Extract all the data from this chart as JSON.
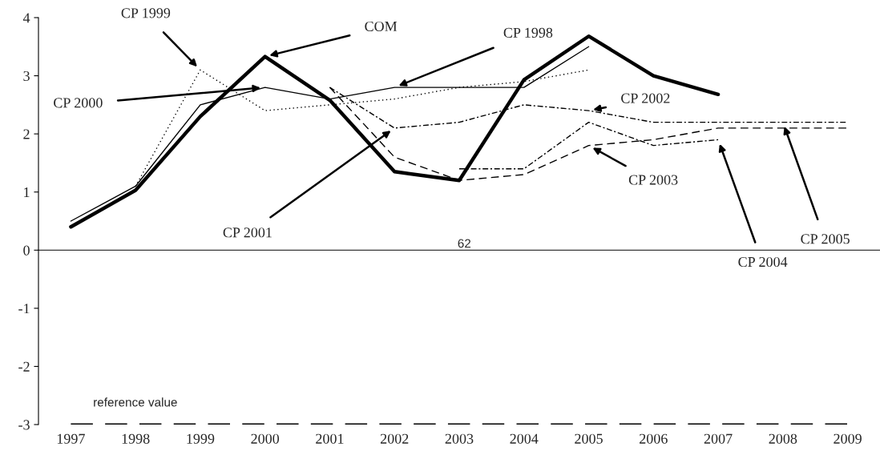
{
  "chart_data": {
    "type": "line",
    "categories": [
      "1997",
      "1998",
      "1999",
      "2000",
      "2001",
      "2002",
      "2003",
      "2004",
      "2005",
      "2006",
      "2007",
      "2008",
      "2009"
    ],
    "series": [
      {
        "color": "#000000",
        "line_style": "solid",
        "values": [
          0.4,
          1.03,
          2.3,
          3.33,
          2.58,
          1.35,
          1.2,
          2.93,
          3.68,
          3.0,
          2.68,
          null,
          null
        ]
      },
      {
        "color": "#000000",
        "line_style": "solid",
        "values": [
          0.5,
          1.1,
          2.5,
          2.8,
          2.6,
          2.8,
          2.8,
          2.8,
          3.5,
          null,
          null,
          null,
          null
        ]
      },
      {
        "color": "#000000",
        "line_style": "dotted",
        "values": [
          null,
          1.1,
          3.1,
          2.4,
          2.5,
          2.6,
          2.8,
          2.9,
          3.1,
          null,
          null,
          null,
          null
        ]
      },
      {
        "color": "#000000",
        "line_style": "dashed",
        "values": [
          null,
          null,
          null,
          null,
          2.8,
          1.6,
          1.2,
          1.3,
          1.8,
          1.9,
          2.1,
          2.1,
          2.1
        ]
      },
      {
        "color": "#000000",
        "line_style": "dashdot",
        "values": [
          null,
          null,
          null,
          null,
          2.8,
          2.1,
          2.2,
          2.5,
          2.4,
          2.2,
          2.2,
          2.2,
          2.2
        ]
      },
      {
        "color": "#000000",
        "line_style": "dashdot",
        "values": [
          null,
          null,
          null,
          null,
          null,
          null,
          1.4,
          1.4,
          2.2,
          1.8,
          1.9,
          null,
          null
        ]
      }
    ],
    "ylim": [
      -3,
      4
    ],
    "yticks": [
      -3,
      -2,
      -1,
      0,
      1,
      2,
      3,
      4
    ],
    "legend": false,
    "marker": "none",
    "ref_lines": [
      {
        "axis": "y",
        "value": -3,
        "label": "reference value",
        "color": "#000000",
        "line_style": "dashed"
      }
    ],
    "annotations": [
      {
        "text": "COM",
        "x": "2000",
        "y": 3.33
      },
      {
        "text": "CP 1999",
        "x": "1999",
        "y": 3.1
      },
      {
        "text": "CP 1998",
        "x": "2002",
        "y": 2.8
      },
      {
        "text": "CP 2000",
        "x": "2000",
        "y": 2.8
      },
      {
        "text": "CP 2001",
        "x": "2002",
        "y": 2.1
      },
      {
        "text": "CP 2002",
        "x": "2005",
        "y": 2.4
      },
      {
        "text": "CP 2003",
        "x": "2005",
        "y": 1.8
      },
      {
        "text": "CP 2004",
        "x": "2007",
        "y": 1.9
      },
      {
        "text": "CP 2005",
        "x": "2008",
        "y": 2.2
      },
      "62"
    ]
  }
}
